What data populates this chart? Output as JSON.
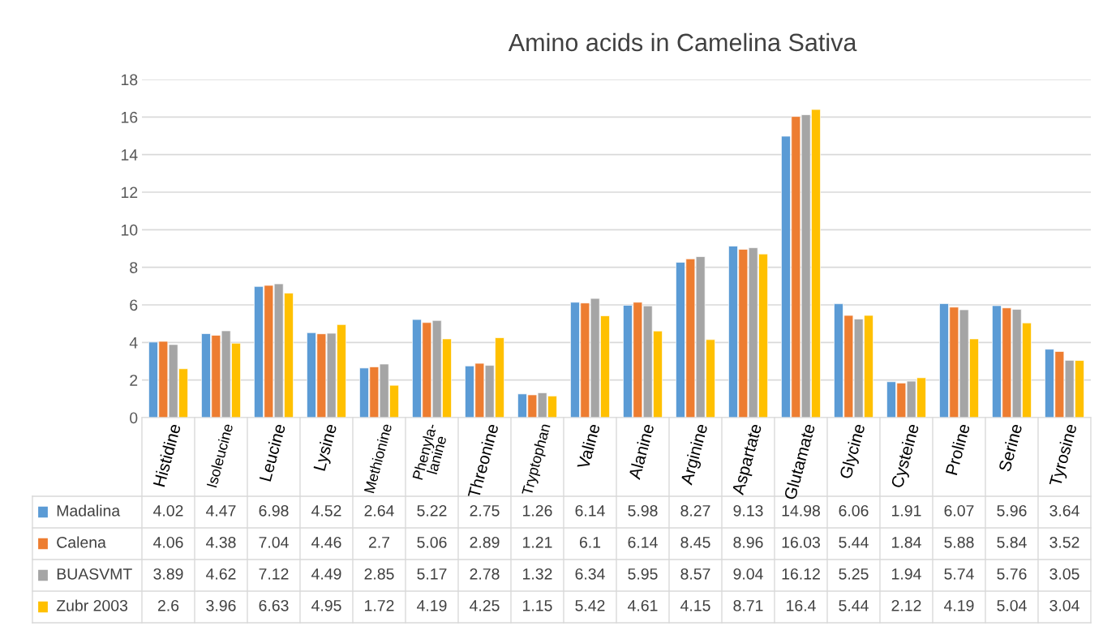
{
  "chart_data": {
    "type": "bar",
    "title": "Amino acids in Camelina Sativa",
    "categories": [
      "Histidine",
      "Isoleucine",
      "Leucine",
      "Lysine",
      "Methionine",
      "Phenyla-\nlanine",
      "Threonine",
      "Tryptophan",
      "Valine",
      "Alanine",
      "Arginine",
      "Aspartate",
      "Glutamate",
      "Glycine",
      "Cysteine",
      "Proline",
      "Serine",
      "Tyrosine"
    ],
    "series": [
      {
        "name": "Madalina",
        "color": "#5b9bd5",
        "values": [
          4.02,
          4.47,
          6.98,
          4.52,
          2.64,
          5.22,
          2.75,
          1.26,
          6.14,
          5.98,
          8.27,
          9.13,
          14.98,
          6.06,
          1.91,
          6.07,
          5.96,
          3.64
        ]
      },
      {
        "name": "Calena",
        "color": "#ed7d31",
        "values": [
          4.06,
          4.38,
          7.04,
          4.46,
          2.7,
          5.06,
          2.89,
          1.21,
          6.1,
          6.14,
          8.45,
          8.96,
          16.03,
          5.44,
          1.84,
          5.88,
          5.84,
          3.52
        ]
      },
      {
        "name": "BUASVMT",
        "color": "#a5a5a5",
        "values": [
          3.89,
          4.62,
          7.12,
          4.49,
          2.85,
          5.17,
          2.78,
          1.32,
          6.34,
          5.95,
          8.57,
          9.04,
          16.12,
          5.25,
          1.94,
          5.74,
          5.76,
          3.05
        ]
      },
      {
        "name": "Zubr 2003",
        "color": "#ffc000",
        "values": [
          2.6,
          3.96,
          6.63,
          4.95,
          1.72,
          4.19,
          4.25,
          1.15,
          5.42,
          4.61,
          4.15,
          8.71,
          16.4,
          5.44,
          2.12,
          4.19,
          5.04,
          3.04
        ]
      }
    ],
    "ylim": [
      0,
      18
    ],
    "yticks": [
      0,
      2,
      4,
      6,
      8,
      10,
      12,
      14,
      16,
      18
    ],
    "grid": "y",
    "data_labels": true,
    "legend": "bottom left"
  }
}
